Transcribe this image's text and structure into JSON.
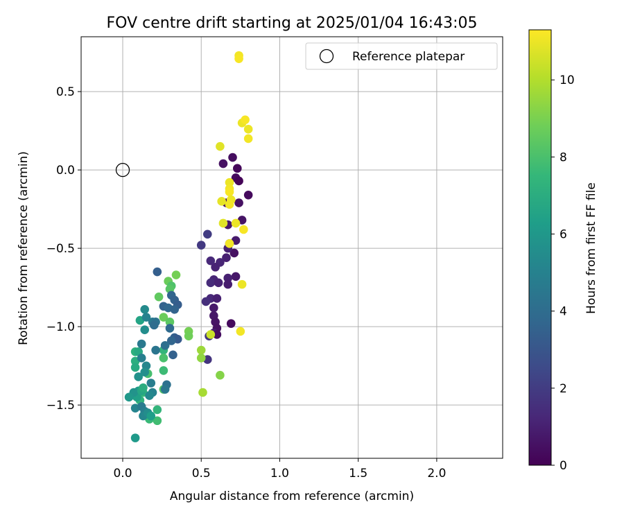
{
  "chart_data": {
    "type": "scatter",
    "title": "FOV centre drift starting at 2025/01/04 16:43:05",
    "xlabel": "Angular distance from reference (arcmin)",
    "ylabel": "Rotation from reference (arcmin)",
    "xlim": [
      -0.265,
      2.42
    ],
    "ylim": [
      -1.84,
      0.85
    ],
    "xticks": [
      0.0,
      0.5,
      1.0,
      1.5,
      2.0
    ],
    "xtick_labels": [
      "0.0",
      "0.5",
      "1.0",
      "1.5",
      "2.0"
    ],
    "yticks": [
      0.5,
      0.0,
      -0.5,
      -1.0,
      -1.5
    ],
    "ytick_labels": [
      "0.5",
      "0.0",
      "−0.5",
      "−1.0",
      "−1.5"
    ],
    "grid": true,
    "legend": {
      "placement": "top-right",
      "entries": [
        "Reference platepar"
      ]
    },
    "reference_point": {
      "name": "Reference platepar",
      "x": 0.0,
      "y": 0.0,
      "marker": "open-circle"
    },
    "colorbar": {
      "label": "Hours from first FF file",
      "colormap": "viridis",
      "min": 0,
      "max": 11.3,
      "ticks": [
        0,
        2,
        4,
        6,
        8,
        10
      ],
      "tick_labels": [
        "0",
        "2",
        "4",
        "6",
        "8",
        "10"
      ]
    },
    "colormap_stops": [
      "#440154",
      "#482878",
      "#3e4a89",
      "#31688e",
      "#26828e",
      "#1f9e89",
      "#35b779",
      "#6ece58",
      "#b5de2b",
      "#fde725"
    ],
    "points": [
      {
        "x": 0.73,
        "y": 0.01,
        "h": 0.2
      },
      {
        "x": 0.72,
        "y": -0.05,
        "h": 0.3
      },
      {
        "x": 0.74,
        "y": -0.07,
        "h": 0.1
      },
      {
        "x": 0.7,
        "y": 0.08,
        "h": 0.4
      },
      {
        "x": 0.64,
        "y": 0.04,
        "h": 0.5
      },
      {
        "x": 0.8,
        "y": -0.16,
        "h": 0.3
      },
      {
        "x": 0.74,
        "y": -0.21,
        "h": 0.5
      },
      {
        "x": 0.66,
        "y": -0.21,
        "h": 0.6
      },
      {
        "x": 0.76,
        "y": -0.32,
        "h": 0.6
      },
      {
        "x": 0.67,
        "y": -0.35,
        "h": 0.7
      },
      {
        "x": 0.72,
        "y": -0.45,
        "h": 0.8
      },
      {
        "x": 0.71,
        "y": -0.53,
        "h": 0.5
      },
      {
        "x": 0.68,
        "y": -0.47,
        "h": 0.9
      },
      {
        "x": 0.67,
        "y": -0.5,
        "h": 1.0
      },
      {
        "x": 0.66,
        "y": -0.56,
        "h": 1.0
      },
      {
        "x": 0.62,
        "y": -0.59,
        "h": 1.2
      },
      {
        "x": 0.59,
        "y": -0.62,
        "h": 1.1
      },
      {
        "x": 0.56,
        "y": -0.58,
        "h": 1.3
      },
      {
        "x": 0.72,
        "y": -0.68,
        "h": 0.7
      },
      {
        "x": 0.67,
        "y": -0.69,
        "h": 1.0
      },
      {
        "x": 0.67,
        "y": -0.73,
        "h": 0.9
      },
      {
        "x": 0.58,
        "y": -0.7,
        "h": 1.2
      },
      {
        "x": 0.56,
        "y": -0.72,
        "h": 1.4
      },
      {
        "x": 0.61,
        "y": -0.72,
        "h": 1.1
      },
      {
        "x": 0.56,
        "y": -0.82,
        "h": 1.3
      },
      {
        "x": 0.6,
        "y": -0.82,
        "h": 1.0
      },
      {
        "x": 0.53,
        "y": -0.84,
        "h": 1.5
      },
      {
        "x": 0.58,
        "y": -0.88,
        "h": 0.8
      },
      {
        "x": 0.58,
        "y": -0.93,
        "h": 0.7
      },
      {
        "x": 0.59,
        "y": -0.97,
        "h": 0.6
      },
      {
        "x": 0.6,
        "y": -1.01,
        "h": 0.5
      },
      {
        "x": 0.58,
        "y": -1.04,
        "h": 0.9
      },
      {
        "x": 0.6,
        "y": -1.05,
        "h": 0.4
      },
      {
        "x": 0.69,
        "y": -0.98,
        "h": 0.3
      },
      {
        "x": 0.55,
        "y": -1.06,
        "h": 1.8
      },
      {
        "x": 0.54,
        "y": -1.21,
        "h": 1.7
      },
      {
        "x": 0.54,
        "y": -0.41,
        "h": 2.0
      },
      {
        "x": 0.5,
        "y": -0.48,
        "h": 1.9
      },
      {
        "x": 0.63,
        "y": -0.2,
        "h": 10.9
      },
      {
        "x": 0.62,
        "y": 0.15,
        "h": 10.8
      },
      {
        "x": 0.74,
        "y": 0.73,
        "h": 11.1
      },
      {
        "x": 0.74,
        "y": 0.71,
        "h": 11.2
      },
      {
        "x": 0.76,
        "y": 0.3,
        "h": 11.0
      },
      {
        "x": 0.78,
        "y": 0.32,
        "h": 11.2
      },
      {
        "x": 0.8,
        "y": 0.26,
        "h": 11.0
      },
      {
        "x": 0.8,
        "y": 0.2,
        "h": 11.1
      },
      {
        "x": 0.68,
        "y": -0.08,
        "h": 11.0
      },
      {
        "x": 0.68,
        "y": -0.12,
        "h": 11.1
      },
      {
        "x": 0.68,
        "y": -0.14,
        "h": 11.2
      },
      {
        "x": 0.69,
        "y": -0.19,
        "h": 11.0
      },
      {
        "x": 0.68,
        "y": -0.22,
        "h": 11.1
      },
      {
        "x": 0.64,
        "y": -0.34,
        "h": 10.8
      },
      {
        "x": 0.72,
        "y": -0.34,
        "h": 11.0
      },
      {
        "x": 0.77,
        "y": -0.38,
        "h": 11.2
      },
      {
        "x": 0.68,
        "y": -0.47,
        "h": 11.1
      },
      {
        "x": 0.76,
        "y": -0.73,
        "h": 11.0
      },
      {
        "x": 0.75,
        "y": -1.03,
        "h": 11.1
      },
      {
        "x": 0.56,
        "y": -1.05,
        "h": 10.4
      },
      {
        "x": 0.5,
        "y": -1.15,
        "h": 9.6
      },
      {
        "x": 0.5,
        "y": -1.2,
        "h": 9.4
      },
      {
        "x": 0.51,
        "y": -1.42,
        "h": 9.8
      },
      {
        "x": 0.62,
        "y": -1.31,
        "h": 9.2
      },
      {
        "x": 0.42,
        "y": -1.03,
        "h": 8.9
      },
      {
        "x": 0.42,
        "y": -1.06,
        "h": 8.8
      },
      {
        "x": 0.34,
        "y": -0.67,
        "h": 8.9
      },
      {
        "x": 0.29,
        "y": -0.71,
        "h": 8.7
      },
      {
        "x": 0.31,
        "y": -0.74,
        "h": 8.1
      },
      {
        "x": 0.3,
        "y": -0.76,
        "h": 8.3
      },
      {
        "x": 0.23,
        "y": -0.81,
        "h": 8.5
      },
      {
        "x": 0.26,
        "y": -0.94,
        "h": 8.7
      },
      {
        "x": 0.3,
        "y": -0.97,
        "h": 8.4
      },
      {
        "x": 0.26,
        "y": -1.15,
        "h": 7.4
      },
      {
        "x": 0.26,
        "y": -1.2,
        "h": 8.0
      },
      {
        "x": 0.26,
        "y": -1.28,
        "h": 7.7
      },
      {
        "x": 0.26,
        "y": -1.4,
        "h": 8.2
      },
      {
        "x": 0.22,
        "y": -1.53,
        "h": 7.4
      },
      {
        "x": 0.22,
        "y": -1.6,
        "h": 7.8
      },
      {
        "x": 0.17,
        "y": -1.59,
        "h": 7.6
      },
      {
        "x": 0.16,
        "y": -1.3,
        "h": 7.9
      },
      {
        "x": 0.13,
        "y": -1.42,
        "h": 7.5
      },
      {
        "x": 0.11,
        "y": -1.47,
        "h": 7.3
      },
      {
        "x": 0.08,
        "y": -1.16,
        "h": 7.2
      },
      {
        "x": 0.08,
        "y": -1.22,
        "h": 7.1
      },
      {
        "x": 0.08,
        "y": -1.26,
        "h": 6.9
      },
      {
        "x": 0.1,
        "y": -1.16,
        "h": 6.8
      },
      {
        "x": 0.11,
        "y": -0.96,
        "h": 6.6
      },
      {
        "x": 0.14,
        "y": -1.02,
        "h": 5.5
      },
      {
        "x": 0.14,
        "y": -0.89,
        "h": 5.4
      },
      {
        "x": 0.15,
        "y": -0.94,
        "h": 5.0
      },
      {
        "x": 0.19,
        "y": -0.97,
        "h": 4.6
      },
      {
        "x": 0.22,
        "y": -0.65,
        "h": 3.4
      },
      {
        "x": 0.21,
        "y": -0.97,
        "h": 4.3
      },
      {
        "x": 0.2,
        "y": -0.99,
        "h": 4.0
      },
      {
        "x": 0.26,
        "y": -0.87,
        "h": 3.6
      },
      {
        "x": 0.29,
        "y": -0.88,
        "h": 3.8
      },
      {
        "x": 0.31,
        "y": -0.8,
        "h": 3.7
      },
      {
        "x": 0.33,
        "y": -0.83,
        "h": 3.5
      },
      {
        "x": 0.35,
        "y": -0.86,
        "h": 3.3
      },
      {
        "x": 0.33,
        "y": -0.89,
        "h": 3.6
      },
      {
        "x": 0.3,
        "y": -1.01,
        "h": 3.9
      },
      {
        "x": 0.33,
        "y": -1.07,
        "h": 3.4
      },
      {
        "x": 0.35,
        "y": -1.08,
        "h": 3.2
      },
      {
        "x": 0.31,
        "y": -1.09,
        "h": 3.7
      },
      {
        "x": 0.27,
        "y": -1.12,
        "h": 4.1
      },
      {
        "x": 0.32,
        "y": -1.18,
        "h": 3.5
      },
      {
        "x": 0.21,
        "y": -1.15,
        "h": 4.4
      },
      {
        "x": 0.12,
        "y": -1.11,
        "h": 4.6
      },
      {
        "x": 0.12,
        "y": -1.2,
        "h": 4.9
      },
      {
        "x": 0.15,
        "y": -1.25,
        "h": 5.2
      },
      {
        "x": 0.14,
        "y": -1.29,
        "h": 5.6
      },
      {
        "x": 0.18,
        "y": -1.36,
        "h": 4.8
      },
      {
        "x": 0.19,
        "y": -1.42,
        "h": 5.0
      },
      {
        "x": 0.17,
        "y": -1.44,
        "h": 5.3
      },
      {
        "x": 0.28,
        "y": -1.37,
        "h": 4.2
      },
      {
        "x": 0.27,
        "y": -1.4,
        "h": 4.5
      },
      {
        "x": 0.1,
        "y": -1.32,
        "h": 5.7
      },
      {
        "x": 0.1,
        "y": -1.41,
        "h": 6.2
      },
      {
        "x": 0.09,
        "y": -1.45,
        "h": 6.4
      },
      {
        "x": 0.07,
        "y": -1.42,
        "h": 5.8
      },
      {
        "x": 0.04,
        "y": -1.45,
        "h": 6.0
      },
      {
        "x": 0.08,
        "y": -1.52,
        "h": 5.1
      },
      {
        "x": 0.12,
        "y": -1.51,
        "h": 4.7
      },
      {
        "x": 0.14,
        "y": -1.54,
        "h": 4.9
      },
      {
        "x": 0.13,
        "y": -1.57,
        "h": 5.2
      },
      {
        "x": 0.16,
        "y": -1.55,
        "h": 5.5
      },
      {
        "x": 0.18,
        "y": -1.57,
        "h": 6.3
      },
      {
        "x": 0.08,
        "y": -1.71,
        "h": 6.1
      },
      {
        "x": 0.12,
        "y": -1.41,
        "h": 6.7
      },
      {
        "x": 0.13,
        "y": -1.39,
        "h": 7.0
      }
    ]
  }
}
